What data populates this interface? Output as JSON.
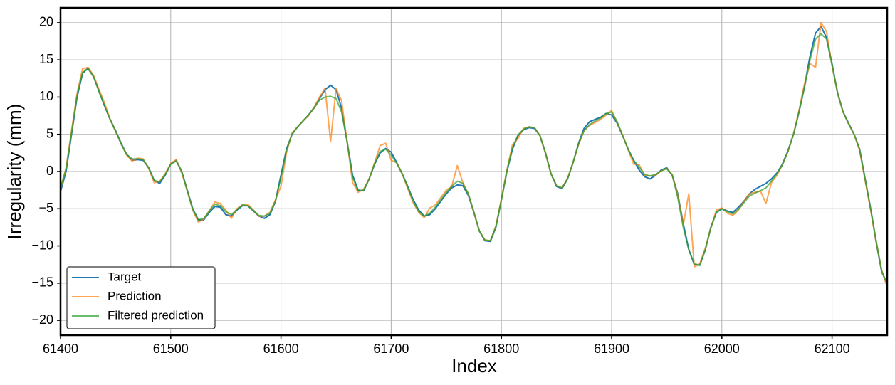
{
  "chart_data": {
    "type": "line",
    "xlabel": "Index",
    "ylabel": "Irregularity (mm)",
    "xlim": [
      61400,
      62150
    ],
    "ylim": [
      -22,
      22
    ],
    "xticks": [
      61400,
      61500,
      61600,
      61700,
      61800,
      61900,
      62000,
      62100
    ],
    "yticks": [
      {
        "value": -20,
        "label": "−20"
      },
      {
        "value": -15,
        "label": "−15"
      },
      {
        "value": -10,
        "label": "−10"
      },
      {
        "value": -5,
        "label": "−5"
      },
      0,
      5,
      10,
      15,
      20
    ],
    "grid": true,
    "legend": "lower left",
    "x": [
      61400,
      61405,
      61410,
      61415,
      61420,
      61425,
      61430,
      61435,
      61440,
      61445,
      61450,
      61455,
      61460,
      61465,
      61470,
      61475,
      61480,
      61485,
      61490,
      61495,
      61500,
      61505,
      61510,
      61515,
      61520,
      61525,
      61530,
      61535,
      61540,
      61545,
      61550,
      61555,
      61560,
      61565,
      61570,
      61575,
      61580,
      61585,
      61590,
      61595,
      61600,
      61605,
      61610,
      61615,
      61620,
      61625,
      61630,
      61635,
      61640,
      61645,
      61650,
      61655,
      61660,
      61665,
      61670,
      61675,
      61680,
      61685,
      61690,
      61695,
      61700,
      61705,
      61710,
      61715,
      61720,
      61725,
      61730,
      61735,
      61740,
      61745,
      61750,
      61755,
      61760,
      61765,
      61770,
      61775,
      61780,
      61785,
      61790,
      61795,
      61800,
      61805,
      61810,
      61815,
      61820,
      61825,
      61830,
      61835,
      61840,
      61845,
      61850,
      61855,
      61860,
      61865,
      61870,
      61875,
      61880,
      61885,
      61890,
      61895,
      61900,
      61905,
      61910,
      61915,
      61920,
      61925,
      61930,
      61935,
      61940,
      61945,
      61950,
      61955,
      61960,
      61965,
      61970,
      61975,
      61980,
      61985,
      61990,
      61995,
      62000,
      62005,
      62010,
      62015,
      62020,
      62025,
      62030,
      62035,
      62040,
      62045,
      62050,
      62055,
      62060,
      62065,
      62070,
      62075,
      62080,
      62085,
      62090,
      62095,
      62100,
      62105,
      62110,
      62115,
      62120,
      62125,
      62130,
      62135,
      62140,
      62145,
      62150
    ],
    "series": [
      {
        "name": "Target",
        "color": "#1f77b4",
        "values": [
          -2.7,
          0,
          5,
          10,
          13.2,
          13.9,
          12.8,
          10.8,
          8.8,
          7,
          5.5,
          3.8,
          2.3,
          1.5,
          1.6,
          1.5,
          0.5,
          -1.2,
          -1.6,
          -0.5,
          1,
          1.5,
          0,
          -2.5,
          -5,
          -6.5,
          -6.5,
          -5.5,
          -4.7,
          -4.8,
          -5.8,
          -6,
          -5.2,
          -4.6,
          -4.6,
          -5.3,
          -6,
          -6.3,
          -5.8,
          -4,
          -0.5,
          3,
          5,
          6,
          6.8,
          7.6,
          8.6,
          9.8,
          11,
          11.6,
          11,
          8.5,
          4,
          -0.5,
          -2.5,
          -2.6,
          -1,
          1,
          2.5,
          3.1,
          2.6,
          1.2,
          -0.3,
          -2,
          -3.8,
          -5.2,
          -6,
          -5.8,
          -5,
          -4,
          -3,
          -2.2,
          -1.8,
          -1.9,
          -3.2,
          -5.5,
          -8,
          -9.3,
          -9.4,
          -7.5,
          -3.8,
          0,
          3,
          4.8,
          5.6,
          5.9,
          5.8,
          4.8,
          2.5,
          -0.3,
          -2,
          -2.3,
          -1,
          1.2,
          3.8,
          5.8,
          6.7,
          7,
          7.3,
          7.8,
          7.6,
          6.5,
          4.8,
          3,
          1.5,
          0.2,
          -0.7,
          -1,
          -0.5,
          0.2,
          0.5,
          -0.5,
          -3,
          -7,
          -10.5,
          -12.5,
          -12.6,
          -10.5,
          -7.5,
          -5.5,
          -5,
          -5.3,
          -5.5,
          -4.8,
          -4,
          -3,
          -2.4,
          -2,
          -1.6,
          -1,
          -0.2,
          1,
          2.8,
          5,
          8,
          11.5,
          15.5,
          18.6,
          19.5,
          18,
          14.5,
          10.5,
          8,
          6.5,
          5,
          3,
          -1,
          -5,
          -9.5,
          -13.5,
          -15
        ]
      },
      {
        "name": "Prediction",
        "color": "#ff7f0e",
        "values": [
          -2.3,
          0.5,
          5.5,
          10.5,
          13.8,
          14,
          12.9,
          11,
          9.2,
          7,
          5.4,
          3.7,
          2.2,
          1.4,
          1.8,
          1.7,
          0.4,
          -1.5,
          -1.3,
          -0.3,
          1.1,
          1.6,
          -0.2,
          -2.6,
          -5.2,
          -6.8,
          -6.4,
          -5.3,
          -4.1,
          -4.3,
          -5.2,
          -6.3,
          -5,
          -4.5,
          -4.4,
          -5.2,
          -6,
          -6,
          -5.5,
          -3.8,
          -2,
          2.5,
          5.2,
          6,
          6.8,
          7.5,
          8.6,
          10,
          11.2,
          4,
          11.2,
          9.5,
          4,
          -1.5,
          -2.8,
          -2.4,
          -1,
          1.2,
          3.5,
          3.8,
          1.5,
          1.2,
          -0.3,
          -2.3,
          -4.2,
          -5.5,
          -6.2,
          -4.9,
          -4.5,
          -3.5,
          -2.5,
          -2,
          0.8,
          -1.5,
          -3,
          -5.5,
          -8,
          -9.2,
          -9.3,
          -7.3,
          -3.7,
          0.2,
          3.6,
          4.4,
          5.8,
          6,
          5.9,
          4.8,
          2.4,
          -0.3,
          -1.9,
          -2.2,
          -0.9,
          1.2,
          3.6,
          5.5,
          6.2,
          6.6,
          7,
          7.6,
          8.2,
          6.6,
          4.9,
          2.9,
          1,
          0.9,
          -0.5,
          -0.6,
          -0.5,
          0.1,
          0.4,
          -0.4,
          -3.2,
          -7.2,
          -3,
          -12.8,
          -12.4,
          -10.3,
          -7.6,
          -5.2,
          -4.9,
          -5.6,
          -5.9,
          -5.2,
          -4,
          -3,
          -2.8,
          -2.6,
          -4.3,
          -1.5,
          -0.5,
          0.9,
          2.7,
          5,
          8.2,
          11.8,
          14.5,
          14,
          20,
          18.8,
          14.2,
          10.6,
          8,
          6.4,
          5,
          2.8,
          -1.2,
          -5.2,
          -9.5,
          -13.3,
          -15.5
        ]
      },
      {
        "name": "Filtered prediction",
        "color": "#2ca02c",
        "values": [
          -2.2,
          0.3,
          5.2,
          10.2,
          13.3,
          13.8,
          12.7,
          10.7,
          8.8,
          7,
          5.4,
          3.7,
          2.3,
          1.7,
          1.7,
          1.6,
          0.5,
          -1.2,
          -1.4,
          -0.4,
          1,
          1.4,
          0,
          -2.6,
          -5.1,
          -6.5,
          -6.3,
          -5.3,
          -4.4,
          -4.6,
          -5.4,
          -5.8,
          -5.1,
          -4.5,
          -4.6,
          -5.2,
          -5.9,
          -6,
          -5.6,
          -4,
          -0.8,
          2.8,
          5,
          6,
          6.8,
          7.6,
          8.5,
          9.6,
          10,
          10.1,
          9.8,
          8,
          4,
          -0.8,
          -2.6,
          -2.5,
          -1,
          1.1,
          2.7,
          3,
          2.2,
          1.1,
          -0.3,
          -2.1,
          -4,
          -5.4,
          -6,
          -5.6,
          -4.8,
          -3.8,
          -2.8,
          -2,
          -1.3,
          -1.6,
          -3,
          -5.4,
          -8,
          -9.2,
          -9.3,
          -7.4,
          -3.8,
          0.1,
          3.2,
          4.9,
          5.7,
          6,
          5.9,
          4.8,
          2.5,
          -0.3,
          -1.9,
          -2.2,
          -1,
          1.2,
          3.7,
          5.5,
          6.3,
          6.8,
          7.2,
          7.8,
          8,
          6.7,
          4.8,
          3,
          1.5,
          0.6,
          -0.4,
          -0.6,
          -0.4,
          0.1,
          0.4,
          -0.5,
          -3.5,
          -7.5,
          -10.5,
          -12.4,
          -12.6,
          -10.5,
          -7.6,
          -5.5,
          -5,
          -5.4,
          -5.7,
          -5.1,
          -4.2,
          -3.3,
          -2.9,
          -2.6,
          -2.2,
          -1.3,
          -0.3,
          0.9,
          2.7,
          5,
          8,
          11.3,
          15,
          17.8,
          18.5,
          17.8,
          14.3,
          10.6,
          8,
          6.4,
          5,
          3,
          -1,
          -5,
          -9.3,
          -13.3,
          -15.2
        ]
      }
    ]
  }
}
